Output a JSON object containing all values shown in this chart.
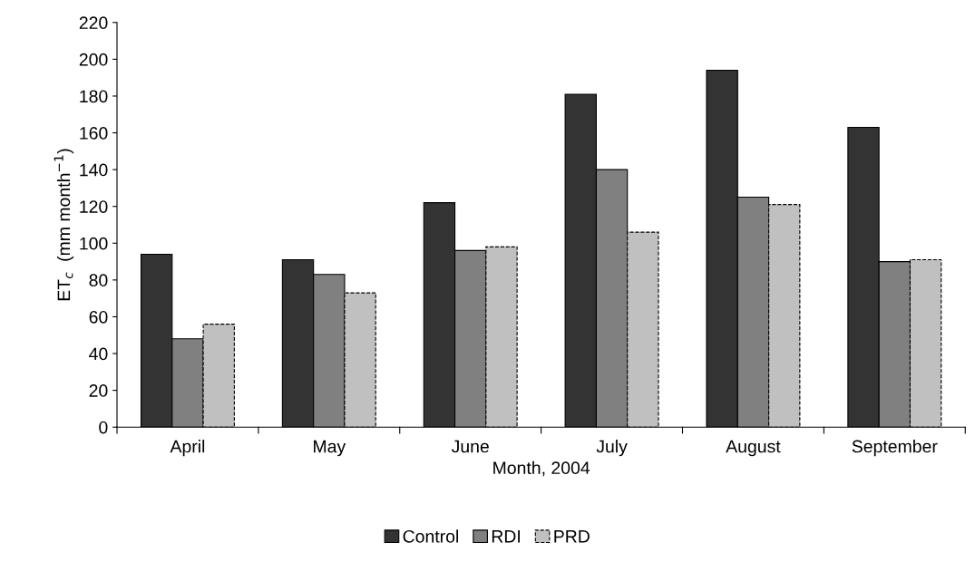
{
  "chart_data": {
    "type": "bar",
    "xlabel": "Month, 2004",
    "ylabel": "ET$_{c}$  (mm month$^{−1}$)",
    "categories": [
      "April",
      "May",
      "June",
      "July",
      "August",
      "September"
    ],
    "series": [
      {
        "name": "Control",
        "color": "#333333",
        "values": [
          94,
          91,
          122,
          181,
          194,
          163
        ]
      },
      {
        "name": "RDI",
        "color": "#808080",
        "values": [
          48,
          83,
          96,
          140,
          125,
          90
        ]
      },
      {
        "name": "PRD",
        "color": "#c0c0c0",
        "values": [
          56,
          73,
          98,
          106,
          121,
          91
        ],
        "line_style": "dashed"
      }
    ],
    "ylim": [
      0,
      220
    ],
    "yticks": [
      0,
      20,
      40,
      60,
      80,
      100,
      120,
      140,
      160,
      180,
      200,
      220
    ],
    "grid": false,
    "legend": "bottom"
  }
}
